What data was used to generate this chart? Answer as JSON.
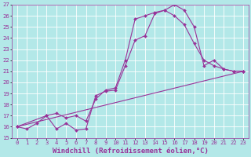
{
  "bg_color": "#b3e8e8",
  "grid_color": "#ffffff",
  "line_color": "#993399",
  "xlim": [
    -0.5,
    23.5
  ],
  "ylim": [
    15,
    27
  ],
  "xticks": [
    0,
    1,
    2,
    3,
    4,
    5,
    6,
    7,
    8,
    9,
    10,
    11,
    12,
    13,
    14,
    15,
    16,
    17,
    18,
    19,
    20,
    21,
    22,
    23
  ],
  "yticks": [
    15,
    16,
    17,
    18,
    19,
    20,
    21,
    22,
    23,
    24,
    25,
    26,
    27
  ],
  "line1_x": [
    0,
    1,
    2,
    3,
    4,
    5,
    6,
    7,
    8,
    9,
    10,
    11,
    12,
    13,
    14,
    15,
    16,
    17,
    18,
    19,
    20,
    21,
    22,
    23
  ],
  "line1_y": [
    16.0,
    15.8,
    16.3,
    17.0,
    15.8,
    16.3,
    15.7,
    15.8,
    18.8,
    19.2,
    19.3,
    21.5,
    23.8,
    24.2,
    26.2,
    26.5,
    27.0,
    26.5,
    25.0,
    21.5,
    22.0,
    21.2,
    21.0,
    21.0
  ],
  "line2_x": [
    0,
    3,
    4,
    5,
    6,
    7,
    8,
    9,
    10,
    11,
    12,
    13,
    14,
    15,
    16,
    17,
    18,
    19,
    20,
    21,
    22,
    23
  ],
  "line2_y": [
    16.0,
    17.0,
    17.2,
    16.8,
    17.0,
    16.5,
    18.5,
    19.3,
    19.5,
    22.0,
    25.7,
    26.0,
    26.3,
    26.5,
    26.0,
    25.2,
    23.5,
    22.0,
    21.5,
    21.2,
    21.0,
    21.0
  ],
  "line3_x": [
    0,
    23
  ],
  "line3_y": [
    16.0,
    21.0
  ],
  "xlabel": "Windchill (Refroidissement éolien,°C)",
  "markersize": 2.0,
  "linewidth": 0.8,
  "xlabel_fontsize": 6.5,
  "tick_fontsize": 5.2
}
